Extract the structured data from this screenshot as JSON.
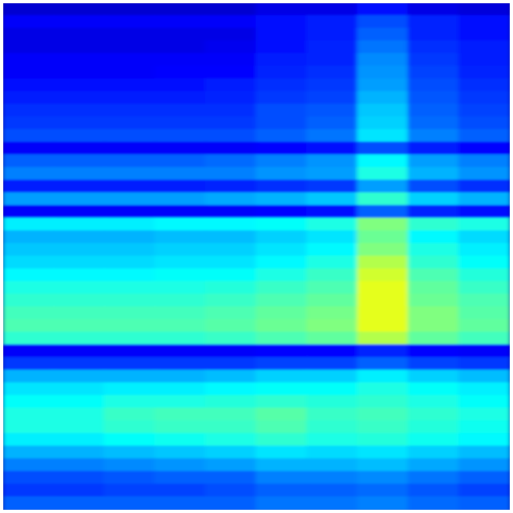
{
  "chart_data": {
    "type": "heatmap",
    "title": "",
    "xlabel": "",
    "ylabel": "",
    "colormap": "jet",
    "value_range": [
      0,
      1
    ],
    "grid": false,
    "legend": "none",
    "values": [
      [
        0.08,
        0.08,
        0.08,
        0.08,
        0.08,
        0.1,
        0.1,
        0.14,
        0.1,
        0.09
      ],
      [
        0.12,
        0.12,
        0.12,
        0.12,
        0.12,
        0.14,
        0.15,
        0.2,
        0.16,
        0.14
      ],
      [
        0.1,
        0.1,
        0.1,
        0.1,
        0.1,
        0.14,
        0.15,
        0.22,
        0.16,
        0.14
      ],
      [
        0.1,
        0.1,
        0.1,
        0.1,
        0.11,
        0.14,
        0.16,
        0.24,
        0.17,
        0.15
      ],
      [
        0.12,
        0.12,
        0.12,
        0.12,
        0.12,
        0.15,
        0.16,
        0.26,
        0.18,
        0.15
      ],
      [
        0.12,
        0.12,
        0.12,
        0.13,
        0.13,
        0.16,
        0.17,
        0.27,
        0.19,
        0.16
      ],
      [
        0.14,
        0.14,
        0.14,
        0.14,
        0.15,
        0.17,
        0.18,
        0.28,
        0.2,
        0.17
      ],
      [
        0.15,
        0.15,
        0.15,
        0.15,
        0.16,
        0.18,
        0.19,
        0.3,
        0.21,
        0.18
      ],
      [
        0.17,
        0.17,
        0.17,
        0.17,
        0.17,
        0.2,
        0.21,
        0.32,
        0.22,
        0.19
      ],
      [
        0.18,
        0.18,
        0.18,
        0.18,
        0.18,
        0.2,
        0.22,
        0.33,
        0.23,
        0.2
      ],
      [
        0.2,
        0.2,
        0.2,
        0.2,
        0.2,
        0.22,
        0.24,
        0.35,
        0.25,
        0.22
      ],
      [
        0.12,
        0.12,
        0.12,
        0.12,
        0.12,
        0.13,
        0.14,
        0.2,
        0.15,
        0.13
      ],
      [
        0.22,
        0.22,
        0.22,
        0.22,
        0.23,
        0.25,
        0.27,
        0.37,
        0.28,
        0.25
      ],
      [
        0.25,
        0.25,
        0.25,
        0.25,
        0.25,
        0.27,
        0.28,
        0.4,
        0.3,
        0.27
      ],
      [
        0.15,
        0.15,
        0.15,
        0.15,
        0.16,
        0.17,
        0.18,
        0.28,
        0.2,
        0.17
      ],
      [
        0.28,
        0.28,
        0.28,
        0.28,
        0.29,
        0.3,
        0.32,
        0.42,
        0.33,
        0.3
      ],
      [
        0.12,
        0.12,
        0.12,
        0.12,
        0.12,
        0.13,
        0.14,
        0.22,
        0.16,
        0.14
      ],
      [
        0.36,
        0.36,
        0.36,
        0.37,
        0.37,
        0.38,
        0.4,
        0.5,
        0.42,
        0.4
      ],
      [
        0.3,
        0.3,
        0.3,
        0.31,
        0.31,
        0.33,
        0.35,
        0.48,
        0.37,
        0.34
      ],
      [
        0.32,
        0.32,
        0.32,
        0.33,
        0.33,
        0.35,
        0.37,
        0.5,
        0.4,
        0.36
      ],
      [
        0.34,
        0.34,
        0.34,
        0.35,
        0.35,
        0.37,
        0.4,
        0.55,
        0.42,
        0.38
      ],
      [
        0.37,
        0.37,
        0.37,
        0.38,
        0.38,
        0.4,
        0.43,
        0.58,
        0.45,
        0.41
      ],
      [
        0.4,
        0.4,
        0.4,
        0.4,
        0.41,
        0.43,
        0.45,
        0.6,
        0.47,
        0.43
      ],
      [
        0.42,
        0.42,
        0.42,
        0.42,
        0.43,
        0.45,
        0.47,
        0.6,
        0.48,
        0.45
      ],
      [
        0.44,
        0.44,
        0.44,
        0.44,
        0.45,
        0.47,
        0.49,
        0.6,
        0.5,
        0.46
      ],
      [
        0.45,
        0.45,
        0.45,
        0.45,
        0.46,
        0.48,
        0.5,
        0.6,
        0.5,
        0.47
      ],
      [
        0.42,
        0.42,
        0.42,
        0.42,
        0.43,
        0.45,
        0.47,
        0.55,
        0.47,
        0.44
      ],
      [
        0.12,
        0.12,
        0.12,
        0.12,
        0.12,
        0.13,
        0.13,
        0.16,
        0.13,
        0.12
      ],
      [
        0.18,
        0.18,
        0.18,
        0.18,
        0.18,
        0.19,
        0.19,
        0.22,
        0.19,
        0.18
      ],
      [
        0.3,
        0.3,
        0.3,
        0.3,
        0.31,
        0.33,
        0.33,
        0.36,
        0.33,
        0.31
      ],
      [
        0.35,
        0.35,
        0.36,
        0.36,
        0.37,
        0.38,
        0.38,
        0.4,
        0.38,
        0.36
      ],
      [
        0.38,
        0.38,
        0.4,
        0.4,
        0.41,
        0.42,
        0.41,
        0.42,
        0.4,
        0.38
      ],
      [
        0.4,
        0.4,
        0.43,
        0.44,
        0.44,
        0.46,
        0.43,
        0.44,
        0.42,
        0.4
      ],
      [
        0.4,
        0.4,
        0.42,
        0.43,
        0.43,
        0.45,
        0.42,
        0.43,
        0.41,
        0.39
      ],
      [
        0.36,
        0.36,
        0.38,
        0.39,
        0.4,
        0.42,
        0.4,
        0.41,
        0.39,
        0.37
      ],
      [
        0.3,
        0.3,
        0.31,
        0.32,
        0.33,
        0.35,
        0.34,
        0.35,
        0.33,
        0.31
      ],
      [
        0.25,
        0.25,
        0.26,
        0.27,
        0.28,
        0.3,
        0.3,
        0.31,
        0.29,
        0.27
      ],
      [
        0.2,
        0.2,
        0.21,
        0.22,
        0.22,
        0.25,
        0.25,
        0.26,
        0.24,
        0.22
      ],
      [
        0.18,
        0.18,
        0.19,
        0.19,
        0.2,
        0.22,
        0.22,
        0.23,
        0.21,
        0.19
      ],
      [
        0.22,
        0.22,
        0.22,
        0.22,
        0.22,
        0.24,
        0.24,
        0.25,
        0.23,
        0.22
      ]
    ]
  }
}
